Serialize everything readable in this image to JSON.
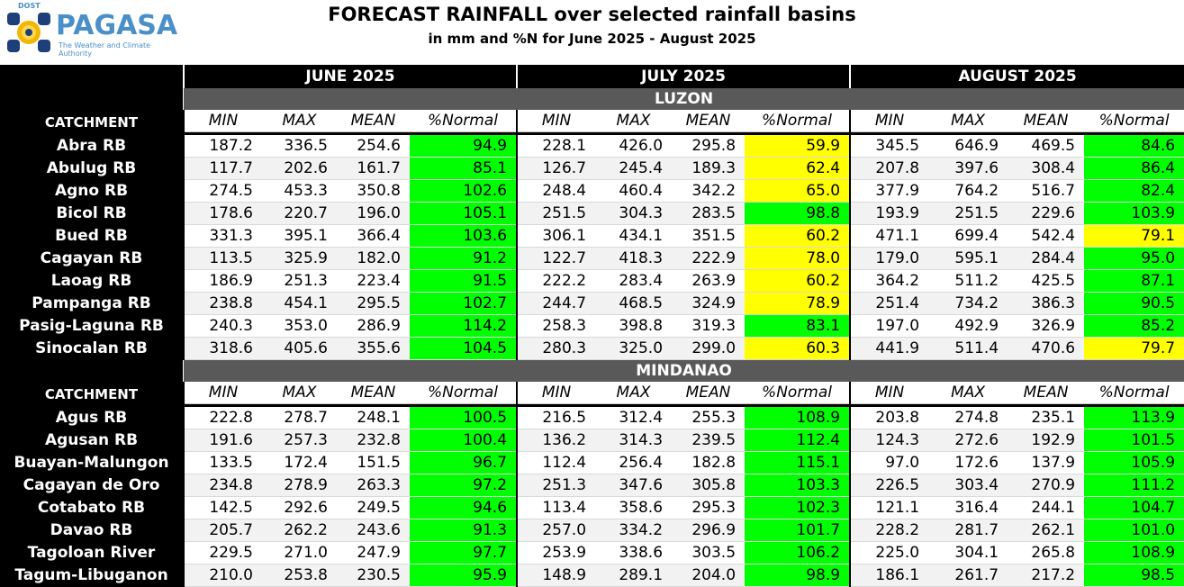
{
  "header": {
    "logo_small": "DOST",
    "logo_brand": "PAGASA",
    "logo_tagline": "The Weather and Climate Authority",
    "title": "FORECAST RAINFALL over selected rainfall basins",
    "subtitle": "in mm and %N for June 2025 - August 2025"
  },
  "months": [
    "JUNE 2025",
    "JULY 2025",
    "AUGUST 2025"
  ],
  "catchment_label": "CATCHMENT",
  "columns": [
    "MIN",
    "MAX",
    "MEAN",
    "%Normal"
  ],
  "colors": {
    "green": "#00ff00",
    "yellow": "#ffff00",
    "region_bar": "#595959"
  },
  "regions": [
    {
      "name": "LUZON",
      "rows": [
        {
          "name": "Abra RB",
          "values": [
            "187.2",
            "336.5",
            "254.6",
            "94.9",
            "228.1",
            "426.0",
            "295.8",
            "59.9",
            "345.5",
            "646.9",
            "469.5",
            "84.6"
          ],
          "status": [
            "green",
            "yellow",
            "green"
          ]
        },
        {
          "name": "Abulug RB",
          "values": [
            "117.7",
            "202.6",
            "161.7",
            "85.1",
            "126.7",
            "245.4",
            "189.3",
            "62.4",
            "207.8",
            "397.6",
            "308.4",
            "86.4"
          ],
          "status": [
            "green",
            "yellow",
            "green"
          ]
        },
        {
          "name": "Agno RB",
          "values": [
            "274.5",
            "453.3",
            "350.8",
            "102.6",
            "248.4",
            "460.4",
            "342.2",
            "65.0",
            "377.9",
            "764.2",
            "516.7",
            "82.4"
          ],
          "status": [
            "green",
            "yellow",
            "green"
          ]
        },
        {
          "name": "Bicol RB",
          "values": [
            "178.6",
            "220.7",
            "196.0",
            "105.1",
            "251.5",
            "304.3",
            "283.5",
            "98.8",
            "193.9",
            "251.5",
            "229.6",
            "103.9"
          ],
          "status": [
            "green",
            "green",
            "green"
          ]
        },
        {
          "name": "Bued RB",
          "values": [
            "331.3",
            "395.1",
            "366.4",
            "103.6",
            "306.1",
            "434.1",
            "351.5",
            "60.2",
            "471.1",
            "699.4",
            "542.4",
            "79.1"
          ],
          "status": [
            "green",
            "yellow",
            "yellow"
          ]
        },
        {
          "name": "Cagayan RB",
          "values": [
            "113.5",
            "325.9",
            "182.0",
            "91.2",
            "122.7",
            "418.3",
            "222.9",
            "78.0",
            "179.0",
            "595.1",
            "284.4",
            "95.0"
          ],
          "status": [
            "green",
            "yellow",
            "green"
          ]
        },
        {
          "name": "Laoag RB",
          "values": [
            "186.9",
            "251.3",
            "223.4",
            "91.5",
            "222.2",
            "283.4",
            "263.9",
            "60.2",
            "364.2",
            "511.2",
            "425.5",
            "87.1"
          ],
          "status": [
            "green",
            "yellow",
            "green"
          ]
        },
        {
          "name": "Pampanga RB",
          "values": [
            "238.8",
            "454.1",
            "295.5",
            "102.7",
            "244.7",
            "468.5",
            "324.9",
            "78.9",
            "251.4",
            "734.2",
            "386.3",
            "90.5"
          ],
          "status": [
            "green",
            "yellow",
            "green"
          ]
        },
        {
          "name": "Pasig-Laguna RB",
          "values": [
            "240.3",
            "353.0",
            "286.9",
            "114.2",
            "258.3",
            "398.8",
            "319.3",
            "83.1",
            "197.0",
            "492.9",
            "326.9",
            "85.2"
          ],
          "status": [
            "green",
            "green",
            "green"
          ]
        },
        {
          "name": "Sinocalan RB",
          "values": [
            "318.6",
            "405.6",
            "355.6",
            "104.5",
            "280.3",
            "325.0",
            "299.0",
            "60.3",
            "441.9",
            "511.4",
            "470.6",
            "79.7"
          ],
          "status": [
            "green",
            "yellow",
            "yellow"
          ]
        }
      ]
    },
    {
      "name": "MINDANAO",
      "rows": [
        {
          "name": "Agus RB",
          "values": [
            "222.8",
            "278.7",
            "248.1",
            "100.5",
            "216.5",
            "312.4",
            "255.3",
            "108.9",
            "203.8",
            "274.8",
            "235.1",
            "113.9"
          ],
          "status": [
            "green",
            "green",
            "green"
          ]
        },
        {
          "name": "Agusan RB",
          "values": [
            "191.6",
            "257.3",
            "232.8",
            "100.4",
            "136.2",
            "314.3",
            "239.5",
            "112.4",
            "124.3",
            "272.6",
            "192.9",
            "101.5"
          ],
          "status": [
            "green",
            "green",
            "green"
          ]
        },
        {
          "name": "Buayan-Malungon",
          "values": [
            "133.5",
            "172.4",
            "151.5",
            "96.7",
            "112.4",
            "256.4",
            "182.8",
            "115.1",
            "97.0",
            "172.6",
            "137.9",
            "105.9"
          ],
          "status": [
            "green",
            "green",
            "green"
          ]
        },
        {
          "name": "Cagayan de Oro",
          "values": [
            "234.8",
            "278.9",
            "263.3",
            "97.2",
            "251.3",
            "347.6",
            "305.8",
            "103.3",
            "226.5",
            "303.4",
            "270.9",
            "111.2"
          ],
          "status": [
            "green",
            "green",
            "green"
          ]
        },
        {
          "name": "Cotabato RB",
          "values": [
            "142.5",
            "292.6",
            "249.5",
            "94.6",
            "113.4",
            "358.6",
            "295.3",
            "102.3",
            "121.1",
            "316.4",
            "244.1",
            "104.7"
          ],
          "status": [
            "green",
            "green",
            "green"
          ]
        },
        {
          "name": "Davao RB",
          "values": [
            "205.7",
            "262.2",
            "243.6",
            "91.3",
            "257.0",
            "334.2",
            "296.9",
            "101.7",
            "228.2",
            "281.7",
            "262.1",
            "101.0"
          ],
          "status": [
            "green",
            "green",
            "green"
          ]
        },
        {
          "name": "Tagoloan River",
          "values": [
            "229.5",
            "271.0",
            "247.9",
            "97.7",
            "253.9",
            "338.6",
            "303.5",
            "106.2",
            "225.0",
            "304.1",
            "265.8",
            "108.9"
          ],
          "status": [
            "green",
            "green",
            "green"
          ]
        },
        {
          "name": "Tagum-Libuganon",
          "values": [
            "210.0",
            "253.8",
            "230.5",
            "95.9",
            "148.9",
            "289.1",
            "204.0",
            "98.9",
            "186.1",
            "261.7",
            "217.2",
            "98.5"
          ],
          "status": [
            "green",
            "green",
            "green"
          ]
        }
      ]
    }
  ]
}
